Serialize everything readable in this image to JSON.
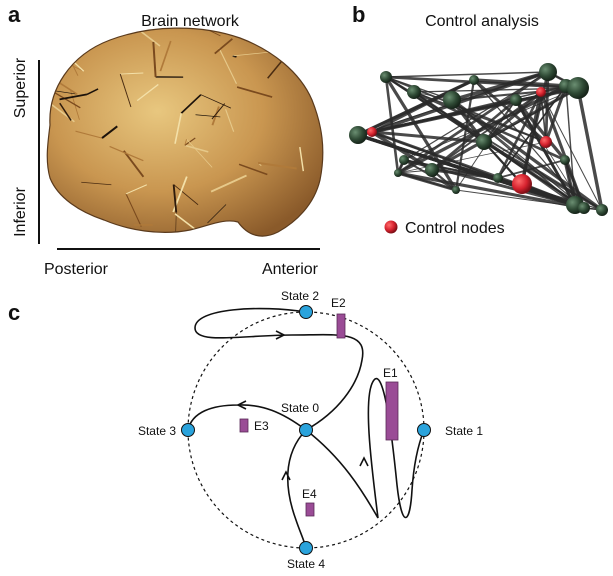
{
  "panels": {
    "a": {
      "letter": "a",
      "title": "Brain network",
      "axis_vertical_top": "Superior",
      "axis_vertical_bottom": "Inferior",
      "axis_horizontal_left": "Posterior",
      "axis_horizontal_right": "Anterior"
    },
    "b": {
      "letter": "b",
      "title": "Control analysis",
      "legend_label": "Control nodes",
      "colors": {
        "regular_node": "#2f4a35",
        "control_node": "#d6222e",
        "edge": "#2a2a2a"
      }
    },
    "c": {
      "letter": "c",
      "states": [
        {
          "id": "state-0",
          "label": "State 0"
        },
        {
          "id": "state-1",
          "label": "State 1"
        },
        {
          "id": "state-2",
          "label": "State 2"
        },
        {
          "id": "state-3",
          "label": "State 3"
        },
        {
          "id": "state-4",
          "label": "State 4"
        }
      ],
      "energies": [
        {
          "id": "e1",
          "label": "E1"
        },
        {
          "id": "e2",
          "label": "E2"
        },
        {
          "id": "e3",
          "label": "E3"
        },
        {
          "id": "e4",
          "label": "E4"
        }
      ],
      "colors": {
        "state_node": "#2aa3dc",
        "energy_bar": "#9a4c96"
      }
    }
  }
}
